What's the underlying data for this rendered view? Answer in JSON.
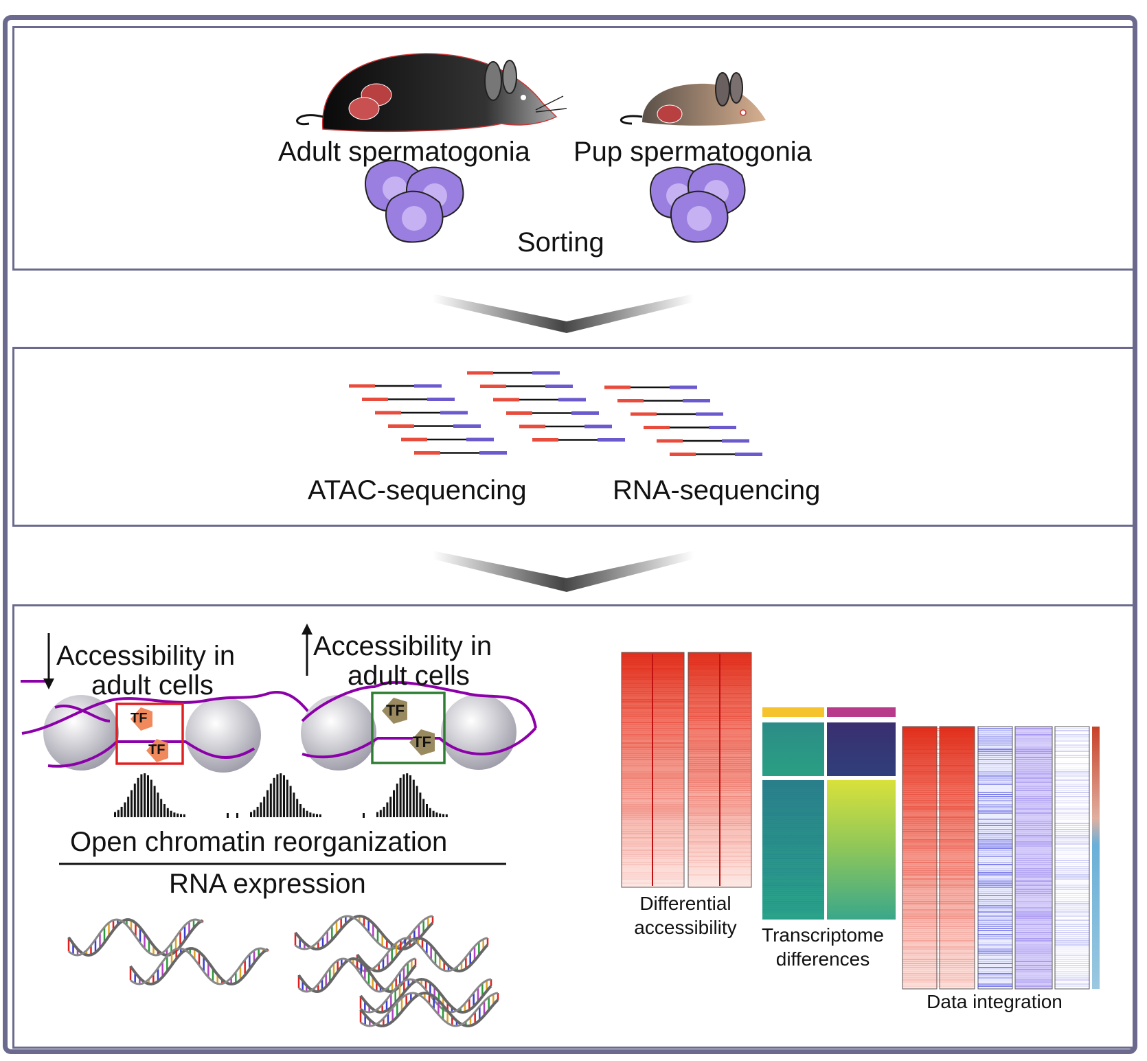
{
  "step1": {
    "adult_label": "Adult spermatogonia",
    "pup_label": "Pup spermatogonia",
    "sorting_label": "Sorting"
  },
  "step2": {
    "atac_label": "ATAC-sequencing",
    "rna_label": "RNA-sequencing"
  },
  "step3": {
    "decrease_label_line1": "Accessibility in",
    "decrease_label_line2": "adult cells",
    "increase_label_line1": "Accessibility in",
    "increase_label_line2": "adult cells",
    "tf_label": "TF",
    "chromatin_label": "Open chromatin reorganization",
    "rna_expression_label": "RNA expression",
    "differential_label_line1": "Differential",
    "differential_label_line2": "accessibility",
    "transcriptome_label_line1": "Transcriptome",
    "transcriptome_label_line2": "differences",
    "integration_label": "Data integration"
  },
  "colors": {
    "frame": "#6b6a8e",
    "read_left": "#e74c3c",
    "read_right": "#6a5acd",
    "nucleosome_dna": "#8b00a8",
    "tf_down_box": "#e02020",
    "tf_up_box": "#2e7d32",
    "tf_orange": "#f08a5d",
    "tf_brown": "#9a8a60",
    "cell_purple": "#9b7fe0",
    "heatmap_red": "#e02a1a",
    "heatmap_blue": "#2b2bd9",
    "viridis_teal": "#2a9a8a",
    "viridis_yellow": "#d8e23a",
    "bar_yellow": "#f5c32c",
    "bar_magenta": "#b83a8a"
  }
}
